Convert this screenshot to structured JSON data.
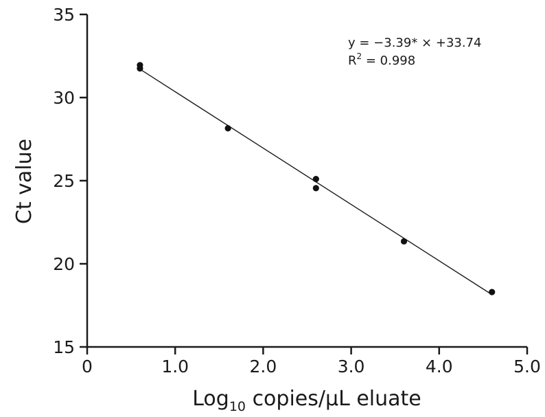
{
  "chart_data": {
    "type": "scatter",
    "title": "",
    "xlabel_main": "Log",
    "xlabel_sub": "10",
    "xlabel_rest": " copies/µL eluate",
    "ylabel": "Ct value",
    "xlim": [
      0,
      5.0
    ],
    "ylim": [
      15,
      35
    ],
    "x_ticks": [
      0,
      1.0,
      2.0,
      3.0,
      4.0,
      5.0
    ],
    "x_tick_labels": [
      "0",
      "1.0",
      "2.0",
      "3.0",
      "4.0",
      "5.0"
    ],
    "y_ticks": [
      15,
      20,
      25,
      30,
      35
    ],
    "y_tick_labels": [
      "15",
      "20",
      "25",
      "30",
      "35"
    ],
    "grid": false,
    "series": [
      {
        "points": [
          {
            "x": 0.6,
            "y": 31.95
          },
          {
            "x": 0.6,
            "y": 31.75
          },
          {
            "x": 1.6,
            "y": 28.15
          },
          {
            "x": 2.6,
            "y": 25.1
          },
          {
            "x": 2.6,
            "y": 24.55
          },
          {
            "x": 3.6,
            "y": 21.35
          },
          {
            "x": 4.6,
            "y": 18.3
          }
        ]
      }
    ],
    "fit_line": {
      "slope": -3.39,
      "intercept": 33.74,
      "x_start": 0.6,
      "x_end": 4.6
    },
    "annotations": {
      "equation": "y = −3.39* × +33.74",
      "r2_prefix": "R",
      "r2_sup": "2",
      "r2_rest": " = 0.998"
    }
  }
}
